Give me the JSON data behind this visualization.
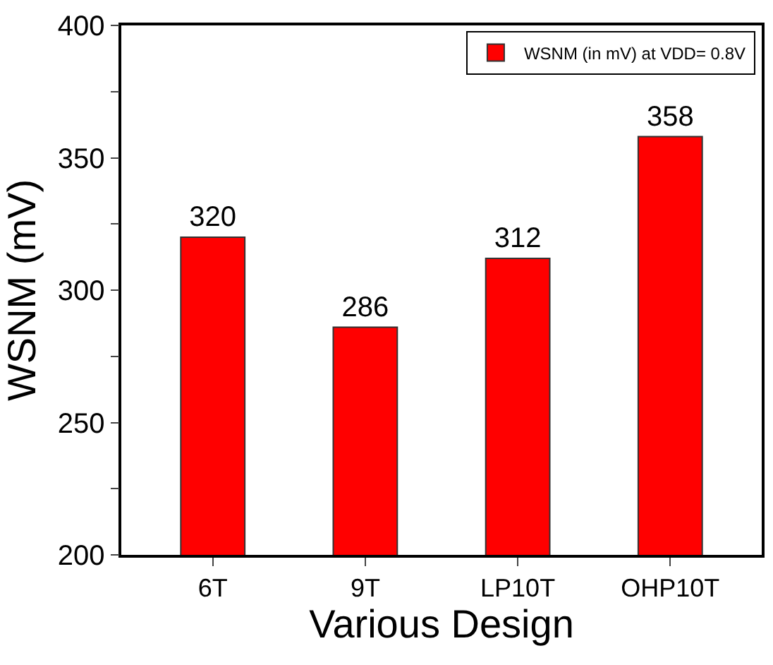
{
  "chart_data": {
    "type": "bar",
    "xlabel": "Various Design",
    "ylabel": "WSNM (mV)",
    "categories": [
      "6T",
      "9T",
      "LP10T",
      "OHP10T"
    ],
    "series": [
      {
        "name": "WSNM (in mV) at VDD= 0.8V",
        "color": "#ff0000",
        "values": [
          320,
          286,
          312,
          358
        ]
      }
    ],
    "ylim": [
      200,
      400
    ],
    "yticks": [
      200,
      {
        "value": 225,
        "label": null
      },
      250,
      {
        "value": 275,
        "label": null
      },
      300,
      {
        "value": 325,
        "label": null
      },
      350,
      {
        "value": 375,
        "label": null
      },
      400
    ],
    "data_labels": true,
    "legend": "top right",
    "grid": false
  }
}
